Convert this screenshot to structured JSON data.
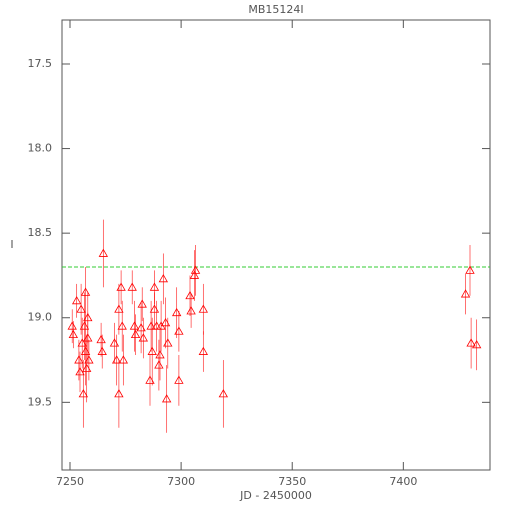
{
  "chart_data": {
    "type": "scatter",
    "title": "MB15124I",
    "xlabel": "JD - 2450000",
    "ylabel": "I",
    "xlim": [
      7246.4,
      7439
    ],
    "ylim": [
      19.9,
      17.24
    ],
    "xticks": [
      7250,
      7300,
      7350,
      7400
    ],
    "yticks": [
      17.5,
      {
        "value": 18,
        "label": "18.0"
      },
      18.5,
      {
        "value": 19,
        "label": "19.0"
      },
      19.5
    ],
    "hline": 18.7,
    "hline_color": "#33cc33",
    "series": [
      {
        "color": "#ff0000",
        "x": [
          7251,
          7251.5,
          7253,
          7254,
          7254.5,
          7255,
          7255.5,
          7256,
          7256.5,
          7257,
          7257,
          7257.5,
          7258,
          7258,
          7258.5,
          7264,
          7265,
          7264.5,
          7270,
          7271,
          7272,
          7272,
          7273,
          7273.5,
          7274,
          7278,
          7279,
          7279.5,
          7282,
          7282.5,
          7283,
          7286,
          7286.5,
          7287,
          7288,
          7288,
          7289,
          7290,
          7290.5,
          7291,
          7292,
          7293,
          7293.5,
          7294,
          7298,
          7299,
          7299,
          7304,
          7304.5,
          7306,
          7306.5,
          7310,
          7310,
          7319,
          7428,
          7430,
          7430.5,
          7433
        ],
        "values": [
          19.05,
          19.1,
          18.9,
          19.25,
          19.32,
          18.95,
          19.15,
          19.45,
          19.05,
          18.85,
          19.2,
          19.3,
          19.0,
          19.12,
          19.25,
          19.13,
          18.62,
          19.2,
          19.15,
          19.25,
          19.45,
          18.95,
          18.82,
          19.05,
          19.25,
          18.82,
          19.05,
          19.1,
          19.06,
          18.92,
          19.12,
          19.37,
          19.05,
          19.2,
          18.95,
          18.82,
          19.05,
          19.28,
          19.22,
          19.05,
          18.77,
          19.03,
          19.48,
          19.15,
          18.97,
          19.08,
          19.37,
          18.87,
          18.96,
          18.75,
          18.72,
          18.95,
          19.2,
          19.45,
          18.86,
          18.72,
          19.15,
          19.16
        ],
        "errors": [
          0.1,
          0.08,
          0.1,
          0.12,
          0.12,
          0.15,
          0.15,
          0.2,
          0.2,
          0.15,
          0.2,
          0.2,
          0.15,
          0.15,
          0.12,
          0.1,
          0.2,
          0.1,
          0.12,
          0.15,
          0.2,
          0.15,
          0.1,
          0.15,
          0.15,
          0.1,
          0.15,
          0.12,
          0.15,
          0.1,
          0.12,
          0.15,
          0.15,
          0.2,
          0.1,
          0.1,
          0.15,
          0.15,
          0.15,
          0.15,
          0.15,
          0.15,
          0.2,
          0.15,
          0.15,
          0.12,
          0.15,
          0.12,
          0.1,
          0.15,
          0.15,
          0.15,
          0.12,
          0.2,
          0.12,
          0.15,
          0.15,
          0.15
        ]
      }
    ]
  }
}
